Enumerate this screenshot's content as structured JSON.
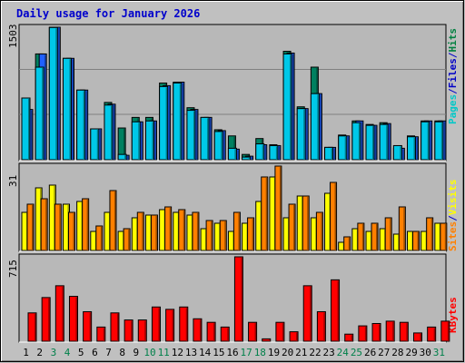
{
  "chart_data": {
    "type": "bar",
    "title": "Daily usage for January 2026",
    "categories": [
      "1",
      "2",
      "3",
      "4",
      "5",
      "6",
      "7",
      "8",
      "9",
      "10",
      "11",
      "12",
      "13",
      "14",
      "15",
      "16",
      "17",
      "18",
      "19",
      "20",
      "21",
      "22",
      "23",
      "24",
      "25",
      "26",
      "27",
      "28",
      "29",
      "30",
      "31"
    ],
    "weekend_days": [
      "3",
      "4",
      "10",
      "11",
      "17",
      "18",
      "24",
      "25",
      "31"
    ],
    "panels": [
      {
        "name": "pages-files-hits",
        "ymax_label": "1503",
        "ymax": 1503,
        "legend": [
          {
            "text": "Pages",
            "color": "#00c8c8"
          },
          {
            "text": "/",
            "color": "#0000c8"
          },
          {
            "text": "Files",
            "color": "#0000c8"
          },
          {
            "text": "/",
            "color": "#0000c8"
          },
          {
            "text": "Hits",
            "color": "#008040"
          }
        ],
        "series": [
          {
            "name": "Hits",
            "color": "#008060",
            "values": [
              570,
              1200,
              1503,
              1150,
              790,
              350,
              650,
              360,
              480,
              480,
              870,
              880,
              590,
              480,
              340,
              270,
              60,
              240,
              170,
              1230,
              600,
              1050,
              140,
              280,
              440,
              400,
              420,
              130,
              270,
              440,
              440
            ]
          },
          {
            "name": "Files",
            "color": "#2060ff",
            "values": [
              570,
              1200,
              1503,
              1150,
              790,
              350,
              630,
              50,
              430,
              440,
              840,
              880,
              570,
              480,
              330,
              120,
              40,
              170,
              160,
              1210,
              580,
              750,
              140,
              270,
              440,
              390,
              410,
              130,
              260,
              440,
              440
            ]
          },
          {
            "name": "Pages",
            "color": "#00c8e8",
            "values": [
              700,
              1050,
              1500,
              1150,
              790,
              350,
              620,
              60,
              430,
              440,
              830,
              870,
              560,
              480,
              320,
              130,
              30,
              180,
              160,
              1200,
              580,
              750,
              140,
              270,
              420,
              390,
              400,
              160,
              260,
              430,
              430
            ]
          }
        ]
      },
      {
        "name": "sites-visits",
        "ymax_label": "31",
        "ymax": 31,
        "legend": [
          {
            "text": "Sites",
            "color": "#ff8000"
          },
          {
            "text": "/",
            "color": "#0000c8"
          },
          {
            "text": "Visits",
            "color": "#ffff00"
          }
        ],
        "series": [
          {
            "name": "Visits",
            "color": "#ffff00",
            "values": [
              14,
              23,
              24,
              17,
              18,
              7,
              14,
              7,
              12,
              13,
              15,
              14,
              13,
              8,
              10,
              7,
              10,
              18,
              27,
              12,
              20,
              12,
              21,
              3,
              8,
              7,
              8,
              6,
              7,
              7,
              10
            ]
          },
          {
            "name": "Sites",
            "color": "#ff8000",
            "values": [
              17,
              19,
              17,
              14,
              19,
              9,
              22,
              8,
              14,
              13,
              16,
              15,
              14,
              11,
              11,
              14,
              12,
              27,
              31,
              17,
              20,
              14,
              25,
              5,
              10,
              10,
              12,
              16,
              7,
              12,
              10
            ]
          }
        ]
      },
      {
        "name": "kbytes",
        "ymax_label": "715",
        "ymax": 715,
        "legend": [
          {
            "text": "KBytes",
            "color": "#ff0000"
          }
        ],
        "series": [
          {
            "name": "KBytes",
            "color": "#ff0000",
            "values": [
              240,
              370,
              470,
              380,
              250,
              120,
              240,
              180,
              180,
              290,
              270,
              290,
              190,
              160,
              120,
              715,
              160,
              20,
              160,
              80,
              470,
              250,
              520,
              60,
              130,
              150,
              170,
              160,
              70,
              120,
              170
            ]
          }
        ]
      }
    ]
  }
}
